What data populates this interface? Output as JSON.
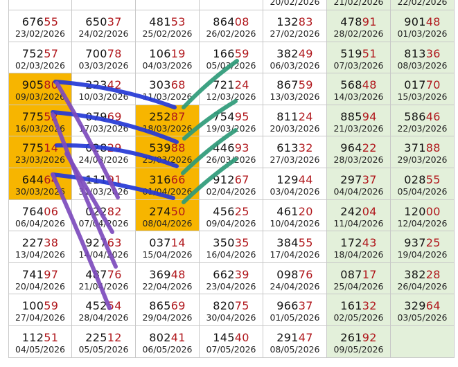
{
  "table": {
    "column_fills": [
      "#ffffff",
      "#ffffff",
      "#ffffff",
      "#ffffff",
      "#ffffff",
      "#e3f0da",
      "#e3f0da"
    ],
    "highlight_color": "#f7b500",
    "rows": [
      [
        null,
        null,
        null,
        null,
        {
          "date": "20/02/2026"
        },
        {
          "date": "21/02/2026"
        },
        {
          "date": "22/02/2026"
        }
      ],
      [
        {
          "number": "67655",
          "date": "23/02/2026"
        },
        {
          "number": "65037",
          "date": "24/02/2026"
        },
        {
          "number": "48153",
          "date": "25/02/2026"
        },
        {
          "number": "86408",
          "date": "26/02/2026"
        },
        {
          "number": "13283",
          "date": "27/02/2026"
        },
        {
          "number": "47891",
          "date": "28/02/2026"
        },
        {
          "number": "90148",
          "date": "01/03/2026"
        }
      ],
      [
        {
          "number": "75257",
          "date": "02/03/2026"
        },
        {
          "number": "70078",
          "date": "03/03/2026"
        },
        {
          "number": "10619",
          "date": "04/03/2026"
        },
        {
          "number": "16659",
          "date": "05/03/2026"
        },
        {
          "number": "38249",
          "date": "06/03/2026"
        },
        {
          "number": "51951",
          "date": "07/03/2026"
        },
        {
          "number": "81336",
          "date": "08/03/2026"
        }
      ],
      [
        {
          "number": "90580",
          "date": "09/03/2026",
          "highlight": true
        },
        {
          "number": "22342",
          "date": "10/03/2026"
        },
        {
          "number": "30368",
          "date": "11/03/2026"
        },
        {
          "number": "72124",
          "date": "12/03/2026"
        },
        {
          "number": "86759",
          "date": "13/03/2026"
        },
        {
          "number": "56848",
          "date": "14/03/2026"
        },
        {
          "number": "01770",
          "date": "15/03/2026"
        }
      ],
      [
        {
          "number": "77552",
          "date": "16/03/2026",
          "highlight": true
        },
        {
          "number": "07969",
          "date": "17/03/2026"
        },
        {
          "number": "25287",
          "date": "18/03/2026",
          "highlight": true
        },
        {
          "number": "75495",
          "date": "19/03/2026"
        },
        {
          "number": "81124",
          "date": "20/03/2026"
        },
        {
          "number": "88594",
          "date": "21/03/2026"
        },
        {
          "number": "58646",
          "date": "22/03/2026"
        }
      ],
      [
        {
          "number": "77514",
          "date": "23/03/2026",
          "highlight": true
        },
        {
          "number": "02829",
          "date": "24/03/2026"
        },
        {
          "number": "53988",
          "date": "25/03/2026",
          "highlight": true
        },
        {
          "number": "44693",
          "date": "26/03/2026"
        },
        {
          "number": "61332",
          "date": "27/03/2026"
        },
        {
          "number": "96422",
          "date": "28/03/2026"
        },
        {
          "number": "37188",
          "date": "29/03/2026"
        }
      ],
      [
        {
          "number": "64464",
          "date": "30/03/2026",
          "highlight": true
        },
        {
          "number": "11191",
          "date": "31/03/2026"
        },
        {
          "number": "31666",
          "date": "01/04/2026",
          "highlight": true
        },
        {
          "number": "91267",
          "date": "02/04/2026"
        },
        {
          "number": "12944",
          "date": "03/04/2026"
        },
        {
          "number": "29737",
          "date": "04/04/2026"
        },
        {
          "number": "02855",
          "date": "05/04/2026"
        }
      ],
      [
        {
          "number": "76406",
          "date": "06/04/2026"
        },
        {
          "number": "02282",
          "date": "07/04/2026"
        },
        {
          "number": "27450",
          "date": "08/04/2026",
          "highlight": true
        },
        {
          "number": "45625",
          "date": "09/04/2026"
        },
        {
          "number": "46120",
          "date": "10/04/2026"
        },
        {
          "number": "24204",
          "date": "11/04/2026"
        },
        {
          "number": "12000",
          "date": "12/04/2026"
        }
      ],
      [
        {
          "number": "22738",
          "date": "13/04/2026"
        },
        {
          "number": "92763",
          "date": "14/04/2026"
        },
        {
          "number": "03714",
          "date": "15/04/2026"
        },
        {
          "number": "35035",
          "date": "16/04/2026"
        },
        {
          "number": "38455",
          "date": "17/04/2026"
        },
        {
          "number": "17243",
          "date": "18/04/2026"
        },
        {
          "number": "93725",
          "date": "19/04/2026"
        }
      ],
      [
        {
          "number": "74197",
          "date": "20/04/2026"
        },
        {
          "number": "48776",
          "date": "21/04/2026"
        },
        {
          "number": "36948",
          "date": "22/04/2026"
        },
        {
          "number": "66239",
          "date": "23/04/2026"
        },
        {
          "number": "09876",
          "date": "24/04/2026"
        },
        {
          "number": "08717",
          "date": "25/04/2026"
        },
        {
          "number": "38228",
          "date": "26/04/2026"
        }
      ],
      [
        {
          "number": "10059",
          "date": "27/04/2026"
        },
        {
          "number": "45254",
          "date": "28/04/2026"
        },
        {
          "number": "86569",
          "date": "29/04/2026"
        },
        {
          "number": "82075",
          "date": "30/04/2026"
        },
        {
          "number": "96637",
          "date": "01/05/2026"
        },
        {
          "number": "16132",
          "date": "02/05/2026"
        },
        {
          "number": "32964",
          "date": "03/05/2026"
        }
      ],
      [
        {
          "number": "11251",
          "date": "04/05/2026"
        },
        {
          "number": "22512",
          "date": "05/05/2026"
        },
        {
          "number": "80241",
          "date": "06/05/2026"
        },
        {
          "number": "14540",
          "date": "07/05/2026"
        },
        {
          "number": "29147",
          "date": "08/05/2026"
        },
        {
          "number": "26192",
          "date": "09/05/2026"
        },
        null
      ]
    ]
  }
}
